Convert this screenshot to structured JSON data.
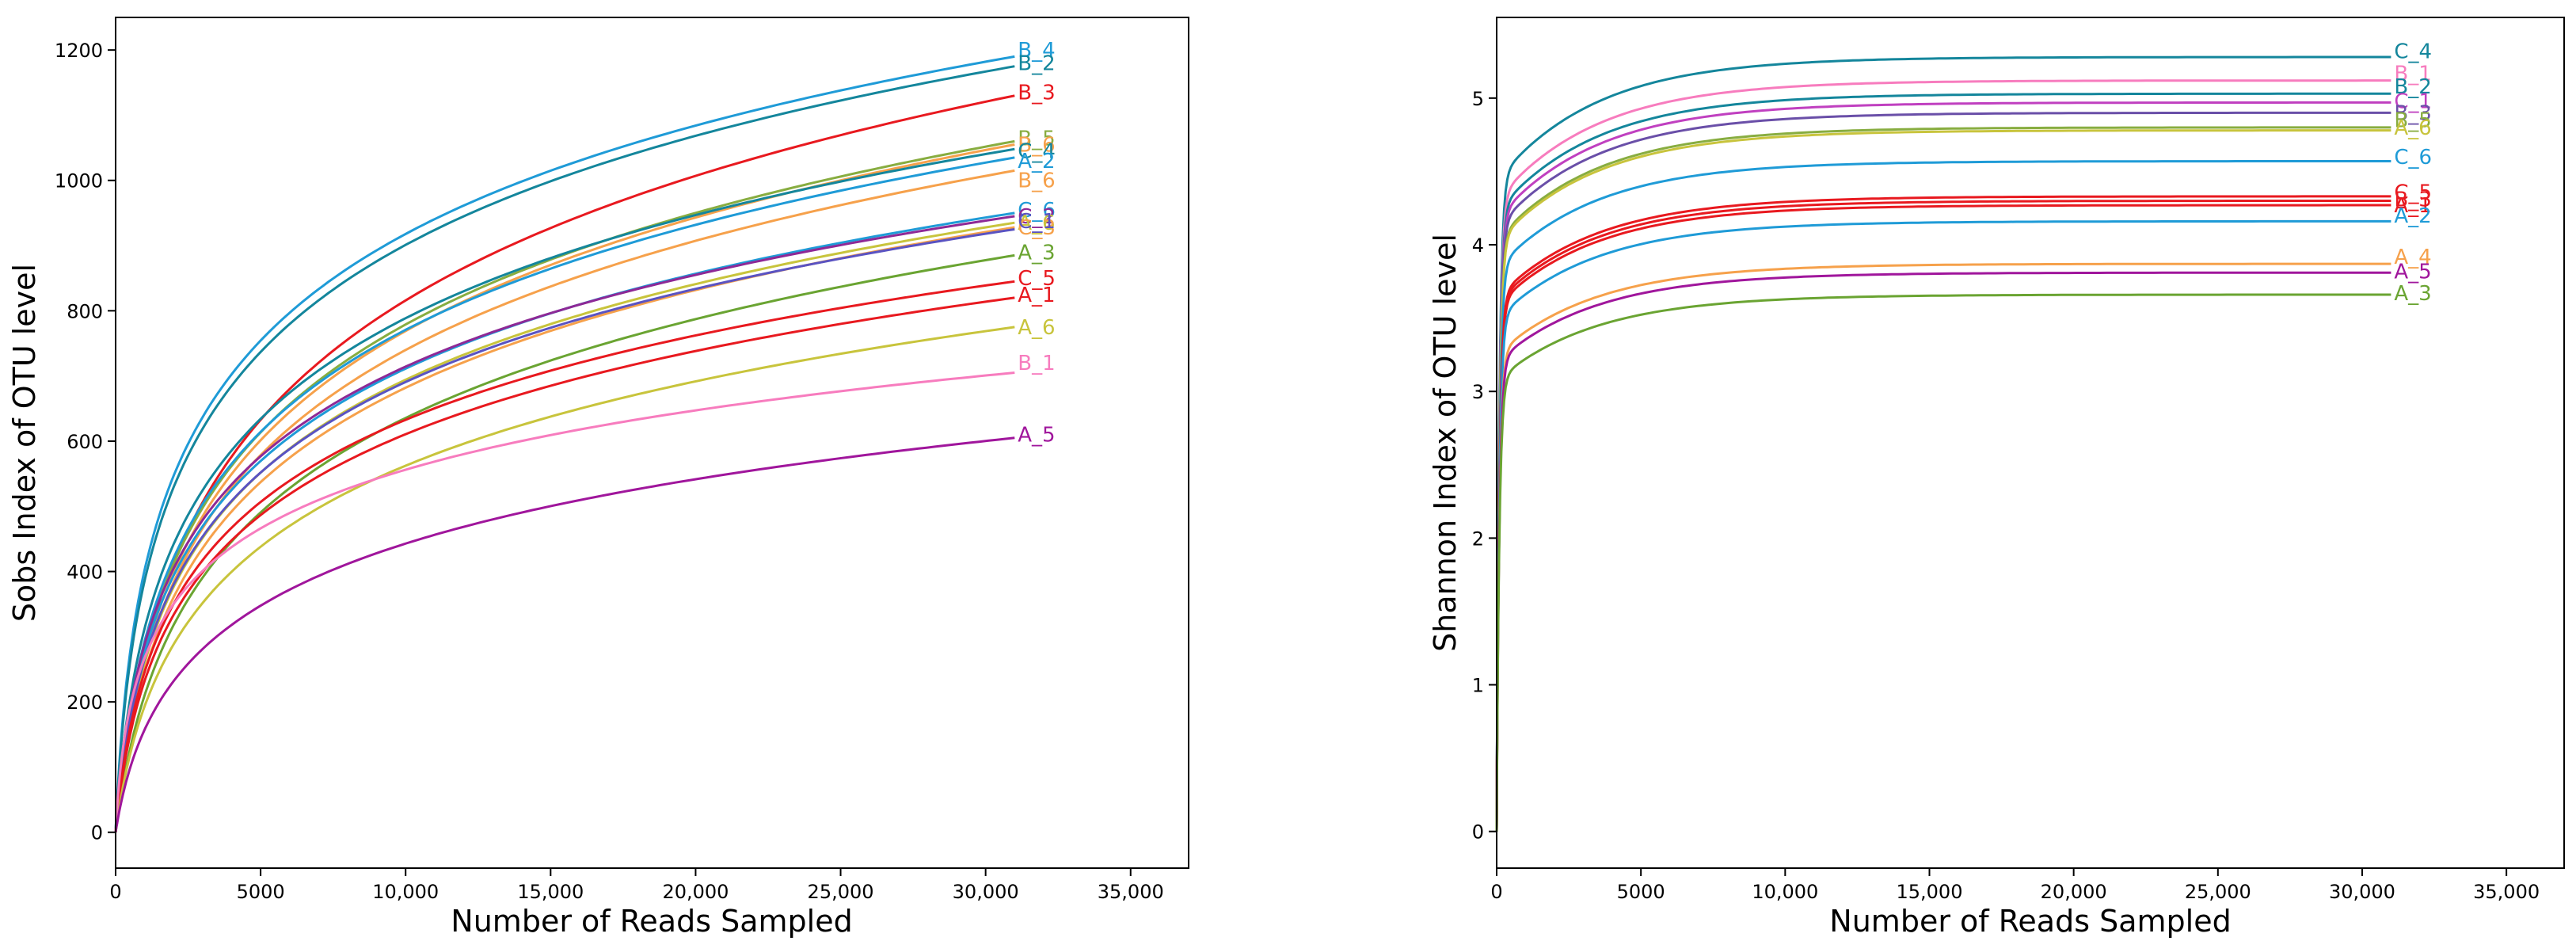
{
  "chart_data": [
    {
      "type": "line",
      "title": "",
      "xlabel": "Number of Reads Sampled",
      "ylabel": "Sobs Index of OTU level",
      "xlim": [
        0,
        37000
      ],
      "ylim": [
        -55,
        1250
      ],
      "x_ticks": [
        0,
        5000,
        10000,
        15000,
        20000,
        25000,
        30000,
        35000
      ],
      "x_tick_labels": [
        "0",
        "5000",
        "10,000",
        "15,000",
        "20,000",
        "25,000",
        "30,000",
        "35,000"
      ],
      "y_ticks": [
        0,
        200,
        400,
        600,
        800,
        1000,
        1200
      ],
      "y_tick_labels": [
        "0",
        "200",
        "400",
        "600",
        "800",
        "1000",
        "1200"
      ],
      "x_end": 31000,
      "series": [
        {
          "name": "B_4",
          "color": "#1f9bd7",
          "final": 1190,
          "k": 4.2,
          "label_y": 1200
        },
        {
          "name": "B_2",
          "color": "#14869c",
          "final": 1175,
          "k": 3.8,
          "label_y": 1180
        },
        {
          "name": "B_3",
          "color": "#e8191f",
          "final": 1130,
          "k": 1.6,
          "label_y": 1135
        },
        {
          "name": "B_5",
          "color": "#88ad40",
          "final": 1060,
          "k": 2.0,
          "label_y": 1065
        },
        {
          "name": "B_6",
          "color": "#f6a14b",
          "final": 1055,
          "k": 1.8,
          "label_y": 1055
        },
        {
          "name": "C_4",
          "color": "#14869c",
          "final": 1048,
          "k": 2.8,
          "label_y": 1045
        },
        {
          "name": "A_2",
          "color": "#1f9bd7",
          "final": 1035,
          "k": 2.4,
          "label_y": 1030
        },
        {
          "name": "B_6",
          "color": "#f6a14b",
          "final": 1015,
          "k": 1.8,
          "label_y": 1000
        },
        {
          "name": "C_6",
          "color": "#1f9bd7",
          "final": 950,
          "k": 2.6,
          "label_y": 955
        },
        {
          "name": "C_2",
          "color": "#8e2996",
          "final": 945,
          "k": 3.0,
          "label_y": 945
        },
        {
          "name": "A_6",
          "color": "#c8c43c",
          "final": 935,
          "k": 2.3,
          "label_y": 935
        },
        {
          "name": "C_3",
          "color": "#f6a14b",
          "final": 928,
          "k": 2.0,
          "label_y": 928
        },
        {
          "name": "C_1",
          "color": "#5a53c2",
          "final": 925,
          "k": 2.5,
          "label_y": 938
        },
        {
          "name": "A_3",
          "color": "#6aa432",
          "final": 885,
          "k": 1.5,
          "label_y": 890
        },
        {
          "name": "C_5",
          "color": "#e8191f",
          "final": 845,
          "k": 2.6,
          "label_y": 850
        },
        {
          "name": "A_1",
          "color": "#e8191f",
          "final": 820,
          "k": 2.4,
          "label_y": 825
        },
        {
          "name": "A_6",
          "color": "#c8c43c",
          "final": 775,
          "k": 1.7,
          "label_y": 775
        },
        {
          "name": "B_1",
          "color": "#f77cbe",
          "final": 705,
          "k": 6.5,
          "label_y": 720
        },
        {
          "name": "A_5",
          "color": "#a0169c",
          "final": 605,
          "k": 1.9,
          "label_y": 610
        }
      ]
    },
    {
      "type": "line",
      "title": "",
      "xlabel": "Number of Reads Sampled",
      "ylabel": "Shannon Index of OTU level",
      "xlim": [
        0,
        37000
      ],
      "ylim": [
        -0.25,
        5.55
      ],
      "x_ticks": [
        0,
        5000,
        10000,
        15000,
        20000,
        25000,
        30000,
        35000
      ],
      "x_tick_labels": [
        "0",
        "5000",
        "10,000",
        "15,000",
        "20,000",
        "25,000",
        "30,000",
        "35,000"
      ],
      "y_ticks": [
        0,
        1,
        2,
        3,
        4,
        5
      ],
      "y_tick_labels": [
        "0",
        "1",
        "2",
        "3",
        "4",
        "5"
      ],
      "x_end": 31000,
      "series": [
        {
          "name": "C_4",
          "color": "#14869c",
          "final": 5.28,
          "label_y": 5.32
        },
        {
          "name": "B_1",
          "color": "#f77cbe",
          "final": 5.12,
          "label_y": 5.17
        },
        {
          "name": "B_2",
          "color": "#14869c",
          "final": 5.03,
          "label_y": 5.08
        },
        {
          "name": "C_1",
          "color": "#c040c0",
          "final": 4.97,
          "label_y": 4.98
        },
        {
          "name": "B_3",
          "color": "#6a4fa8",
          "final": 4.9,
          "label_y": 4.9
        },
        {
          "name": "B_5",
          "color": "#88ad40",
          "final": 4.8,
          "label_y": 4.85
        },
        {
          "name": "A_6",
          "color": "#c8c43c",
          "final": 4.78,
          "label_y": 4.8
        },
        {
          "name": "C_6",
          "color": "#1f9bd7",
          "final": 4.57,
          "label_y": 4.6
        },
        {
          "name": "C_5",
          "color": "#e8191f",
          "final": 4.33,
          "label_y": 4.36
        },
        {
          "name": "B_3",
          "color": "#e8191f",
          "final": 4.3,
          "label_y": 4.31
        },
        {
          "name": "A_1",
          "color": "#e8191f",
          "final": 4.27,
          "label_y": 4.27
        },
        {
          "name": "A_2",
          "color": "#1f9bd7",
          "final": 4.16,
          "label_y": 4.2
        },
        {
          "name": "A_4",
          "color": "#f6a14b",
          "final": 3.87,
          "label_y": 3.92
        },
        {
          "name": "A_5",
          "color": "#a0169c",
          "final": 3.81,
          "label_y": 3.82
        },
        {
          "name": "A_3",
          "color": "#6aa432",
          "final": 3.66,
          "label_y": 3.67
        }
      ]
    }
  ]
}
